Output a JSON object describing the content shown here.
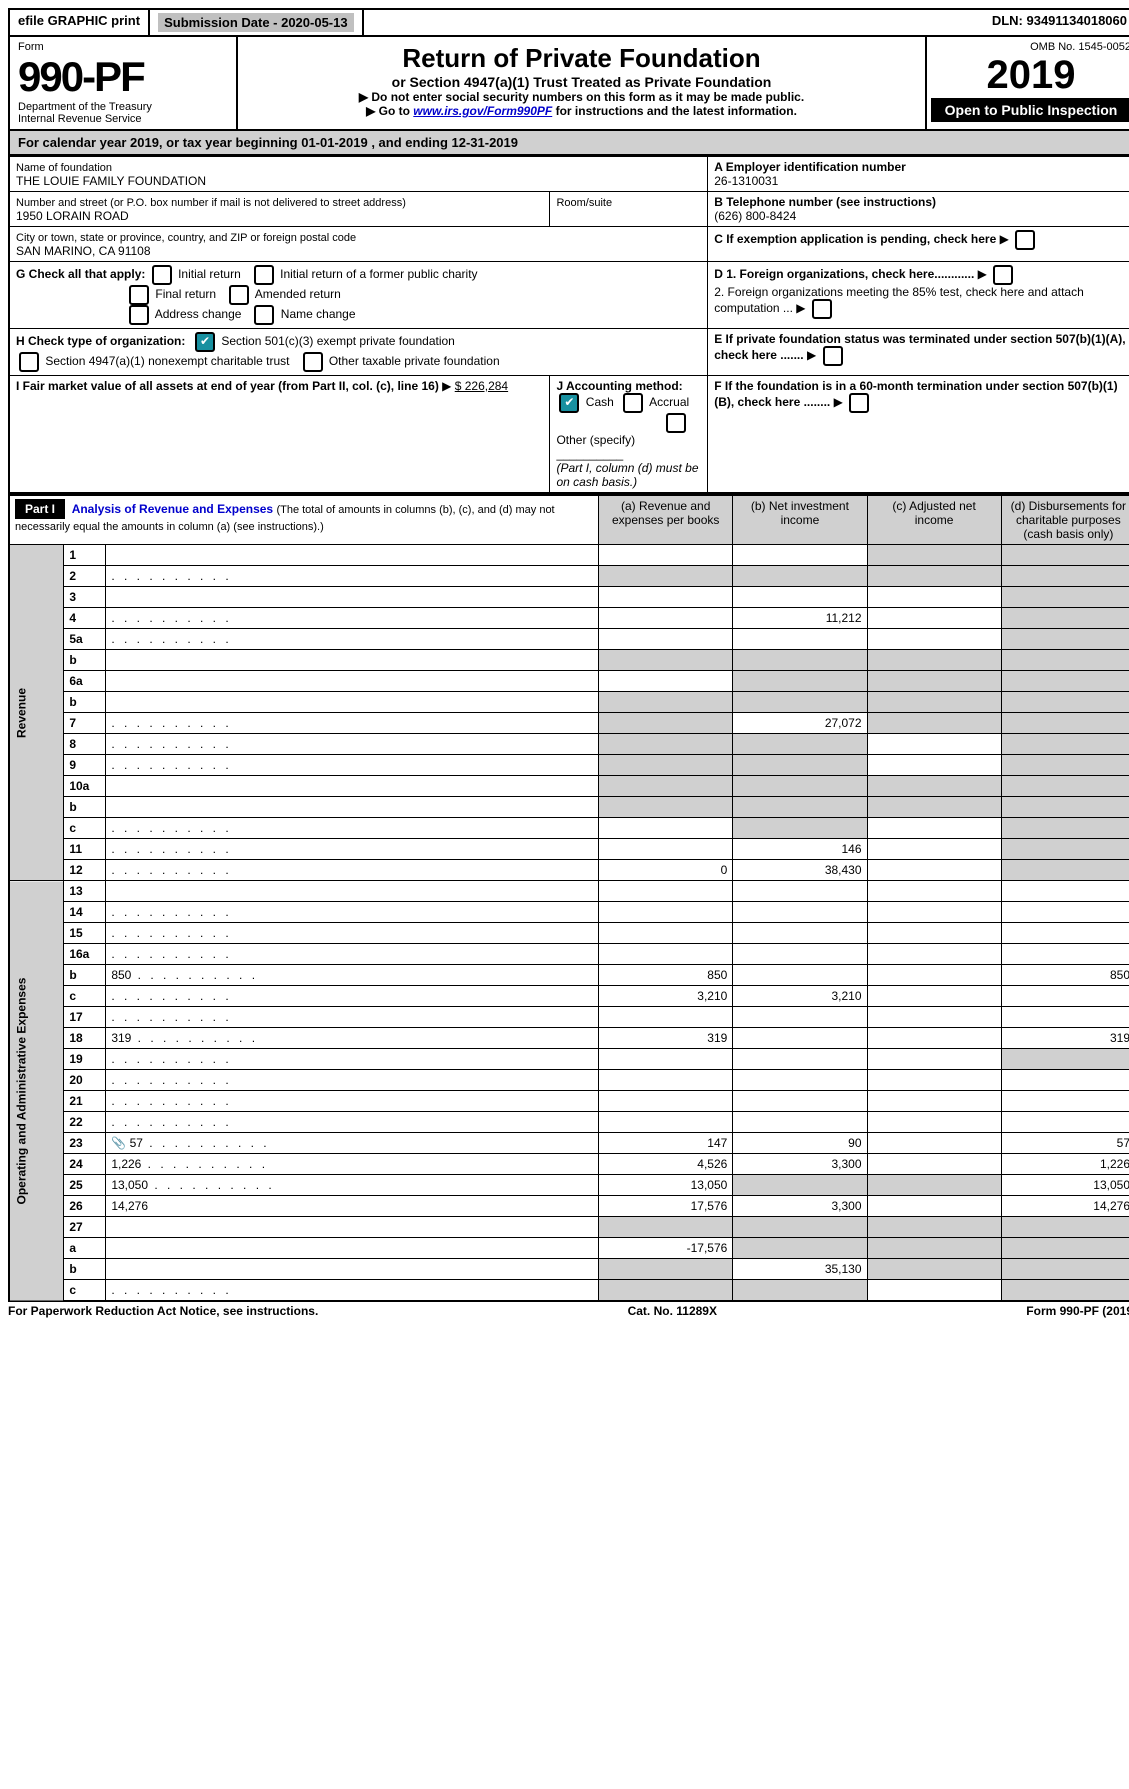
{
  "topbar": {
    "efile": "efile GRAPHIC print",
    "submission": "Submission Date - 2020-05-13",
    "dln": "DLN: 93491134018060"
  },
  "header": {
    "form_label": "Form",
    "form_num": "990-PF",
    "dept": "Department of the Treasury",
    "irs": "Internal Revenue Service",
    "title": "Return of Private Foundation",
    "subtitle": "or Section 4947(a)(1) Trust Treated as Private Foundation",
    "instr1": "Do not enter social security numbers on this form as it may be made public.",
    "instr2_pre": "Go to ",
    "instr2_link": "www.irs.gov/Form990PF",
    "instr2_post": " for instructions and the latest information.",
    "omb": "OMB No. 1545-0052",
    "year": "2019",
    "open": "Open to Public Inspection"
  },
  "calyear": "For calendar year 2019, or tax year beginning 01-01-2019             , and ending 12-31-2019",
  "info": {
    "name_label": "Name of foundation",
    "name": "THE LOUIE FAMILY FOUNDATION",
    "addr_label": "Number and street (or P.O. box number if mail is not delivered to street address)",
    "addr": "1950 LORAIN ROAD",
    "room_label": "Room/suite",
    "city_label": "City or town, state or province, country, and ZIP or foreign postal code",
    "city": "SAN MARINO, CA  91108",
    "ein_label": "A Employer identification number",
    "ein": "26-1310031",
    "tel_label": "B Telephone number (see instructions)",
    "tel": "(626) 800-8424",
    "c_text": "C If exemption application is pending, check here",
    "g_label": "G Check all that apply:",
    "g_items": [
      "Initial return",
      "Initial return of a former public charity",
      "Final return",
      "Amended return",
      "Address change",
      "Name change"
    ],
    "d1": "D 1. Foreign organizations, check here............",
    "d2": "2. Foreign organizations meeting the 85% test, check here and attach computation ...",
    "h_label": "H Check type of organization:",
    "h1": "Section 501(c)(3) exempt private foundation",
    "h2": "Section 4947(a)(1) nonexempt charitable trust",
    "h3": "Other taxable private foundation",
    "e_text": "E If private foundation status was terminated under section 507(b)(1)(A), check here .......",
    "i_label": "I Fair market value of all assets at end of year (from Part II, col. (c), line 16)",
    "i_val": "$  226,284",
    "j_label": "J Accounting method:",
    "j_cash": "Cash",
    "j_accrual": "Accrual",
    "j_other": "Other (specify)",
    "j_note": "(Part I, column (d) must be on cash basis.)",
    "f_text": "F If the foundation is in a 60-month termination under section 507(b)(1)(B), check here ........"
  },
  "part1": {
    "label": "Part I",
    "title": "Analysis of Revenue and Expenses",
    "note": "(The total of amounts in columns (b), (c), and (d) may not necessarily equal the amounts in column (a) (see instructions).)",
    "col_a": "(a)    Revenue and expenses per books",
    "col_b": "(b)   Net investment income",
    "col_c": "(c)   Adjusted net income",
    "col_d": "(d)   Disbursements for charitable purposes (cash basis only)"
  },
  "sections": {
    "revenue": "Revenue",
    "expenses": "Operating and Administrative Expenses"
  },
  "rows": [
    {
      "n": "1",
      "d": "",
      "a": "",
      "b": "",
      "c": "",
      "grey_c": true,
      "grey_d": true
    },
    {
      "n": "2",
      "d": "",
      "dots": true,
      "a": "",
      "b": "",
      "c": "",
      "grey_all": true
    },
    {
      "n": "3",
      "d": "",
      "a": "",
      "b": "",
      "c": "",
      "grey_d": true
    },
    {
      "n": "4",
      "d": "",
      "dots": true,
      "a": "",
      "b": "11,212",
      "c": "",
      "grey_d": true
    },
    {
      "n": "5a",
      "d": "",
      "dots": true,
      "a": "",
      "b": "",
      "c": "",
      "grey_d": true
    },
    {
      "n": "b",
      "d": "",
      "a": "",
      "b": "",
      "c": "",
      "grey_all": true
    },
    {
      "n": "6a",
      "d": "",
      "a": "",
      "b": "",
      "c": "",
      "grey_bcd": true
    },
    {
      "n": "b",
      "d": "",
      "a": "",
      "b": "",
      "c": "",
      "grey_all": true
    },
    {
      "n": "7",
      "d": "",
      "dots": true,
      "a": "",
      "b": "27,072",
      "c": "",
      "grey_a": true,
      "grey_c": true,
      "grey_d": true
    },
    {
      "n": "8",
      "d": "",
      "dots": true,
      "a": "",
      "b": "",
      "c": "",
      "grey_a": true,
      "grey_b": true,
      "grey_d": true
    },
    {
      "n": "9",
      "d": "",
      "dots": true,
      "a": "",
      "b": "",
      "c": "",
      "grey_a": true,
      "grey_b": true,
      "grey_d": true
    },
    {
      "n": "10a",
      "d": "",
      "a": "",
      "b": "",
      "c": "",
      "grey_all": true
    },
    {
      "n": "b",
      "d": "",
      "a": "",
      "b": "",
      "c": "",
      "grey_all": true
    },
    {
      "n": "c",
      "d": "",
      "dots": true,
      "a": "",
      "b": "",
      "c": "",
      "grey_b": true,
      "grey_d": true
    },
    {
      "n": "11",
      "d": "",
      "dots": true,
      "a": "",
      "b": "146",
      "c": "",
      "grey_d": true
    },
    {
      "n": "12",
      "d": "",
      "dots": true,
      "a": "0",
      "b": "38,430",
      "c": "",
      "grey_d": true
    },
    {
      "n": "13",
      "d": "",
      "a": "",
      "b": "",
      "c": ""
    },
    {
      "n": "14",
      "d": "",
      "dots": true,
      "a": "",
      "b": "",
      "c": ""
    },
    {
      "n": "15",
      "d": "",
      "dots": true,
      "a": "",
      "b": "",
      "c": ""
    },
    {
      "n": "16a",
      "d": "",
      "dots": true,
      "a": "",
      "b": "",
      "c": ""
    },
    {
      "n": "b",
      "d": "850",
      "dots": true,
      "a": "850",
      "b": "",
      "c": ""
    },
    {
      "n": "c",
      "d": "",
      "dots": true,
      "a": "3,210",
      "b": "3,210",
      "c": ""
    },
    {
      "n": "17",
      "d": "",
      "dots": true,
      "a": "",
      "b": "",
      "c": ""
    },
    {
      "n": "18",
      "d": "319",
      "dots": true,
      "a": "319",
      "b": "",
      "c": ""
    },
    {
      "n": "19",
      "d": "",
      "dots": true,
      "a": "",
      "b": "",
      "c": "",
      "grey_d": true
    },
    {
      "n": "20",
      "d": "",
      "dots": true,
      "a": "",
      "b": "",
      "c": ""
    },
    {
      "n": "21",
      "d": "",
      "dots": true,
      "a": "",
      "b": "",
      "c": ""
    },
    {
      "n": "22",
      "d": "",
      "dots": true,
      "a": "",
      "b": "",
      "c": ""
    },
    {
      "n": "23",
      "d": "57",
      "dots": true,
      "icon": "📎",
      "a": "147",
      "b": "90",
      "c": ""
    },
    {
      "n": "24",
      "d": "1,226",
      "dots": true,
      "a": "4,526",
      "b": "3,300",
      "c": ""
    },
    {
      "n": "25",
      "d": "13,050",
      "dots": true,
      "a": "13,050",
      "b": "",
      "c": "",
      "grey_b": true,
      "grey_c": true
    },
    {
      "n": "26",
      "d": "14,276",
      "a": "17,576",
      "b": "3,300",
      "c": ""
    },
    {
      "n": "27",
      "d": "",
      "a": "",
      "b": "",
      "c": "",
      "grey_all": true
    },
    {
      "n": "a",
      "d": "",
      "a": "-17,576",
      "b": "",
      "c": "",
      "grey_bcd": true
    },
    {
      "n": "b",
      "d": "",
      "a": "",
      "b": "35,130",
      "c": "",
      "grey_a": true,
      "grey_c": true,
      "grey_d": true
    },
    {
      "n": "c",
      "d": "",
      "dots": true,
      "a": "",
      "b": "",
      "c": "",
      "grey_a": true,
      "grey_b": true,
      "grey_d": true
    }
  ],
  "footer": {
    "left": "For Paperwork Reduction Act Notice, see instructions.",
    "mid": "Cat. No. 11289X",
    "right": "Form 990-PF (2019)"
  }
}
